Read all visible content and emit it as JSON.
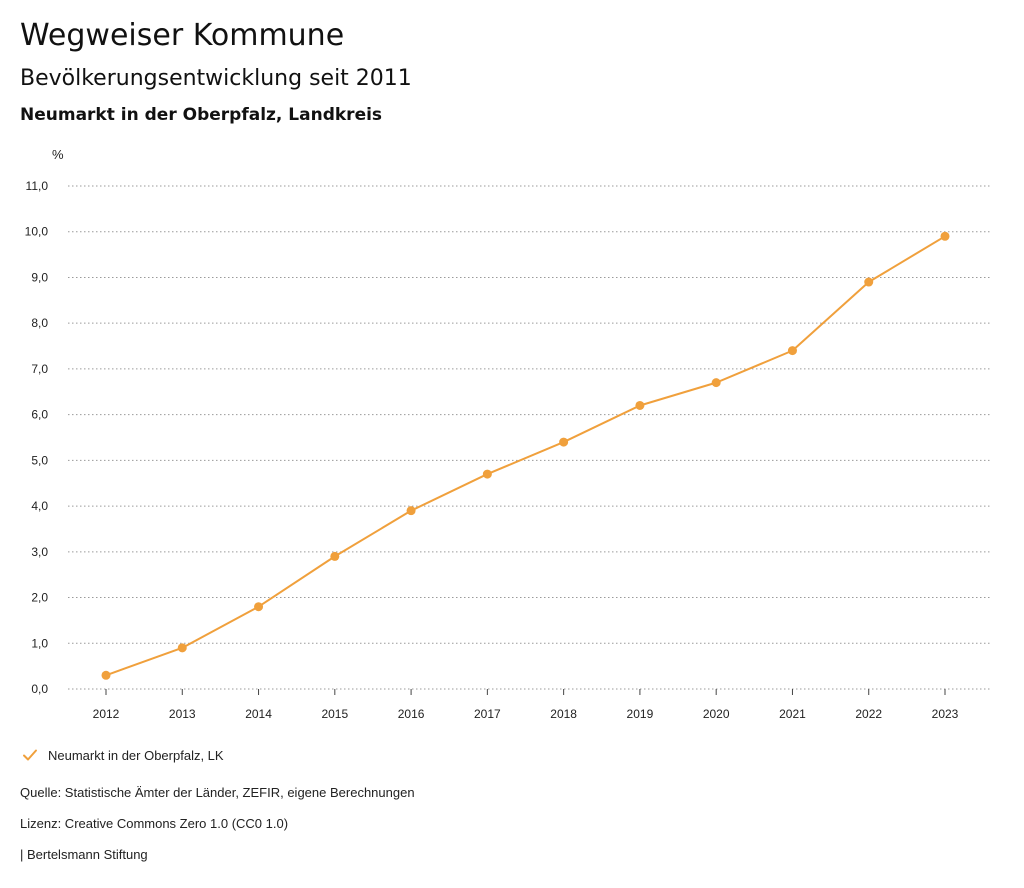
{
  "header": {
    "title": "Wegweiser Kommune",
    "subtitle": "Bevölkerungsentwicklung seit 2011"
  },
  "chart_data": {
    "type": "line",
    "title": "Neumarkt in der Oberpfalz, Landkreis",
    "xlabel": "",
    "ylabel": "%",
    "categories": [
      "2012",
      "2013",
      "2014",
      "2015",
      "2016",
      "2017",
      "2018",
      "2019",
      "2020",
      "2021",
      "2022",
      "2023"
    ],
    "series": [
      {
        "name": "Neumarkt in der Oberpfalz, LK",
        "color": "#f0a03c",
        "values": [
          0.3,
          0.9,
          1.8,
          2.9,
          3.9,
          4.7,
          5.4,
          6.2,
          6.7,
          7.4,
          8.9,
          9.9
        ]
      }
    ],
    "ylim": [
      0,
      11
    ],
    "yticks": [
      "0,0",
      "1,0",
      "2,0",
      "3,0",
      "4,0",
      "5,0",
      "6,0",
      "7,0",
      "8,0",
      "9,0",
      "10,0",
      "11,0"
    ],
    "grid": true,
    "legend_position": "bottom-left"
  },
  "legend": {
    "icon": "check-icon",
    "label": "Neumarkt in der Oberpfalz, LK"
  },
  "footer": {
    "source": "Quelle: Statistische Ämter der Länder, ZEFIR, eigene Berechnungen",
    "license": "Lizenz: Creative Commons Zero 1.0 (CC0 1.0)",
    "publisher": "| Bertelsmann Stiftung"
  }
}
